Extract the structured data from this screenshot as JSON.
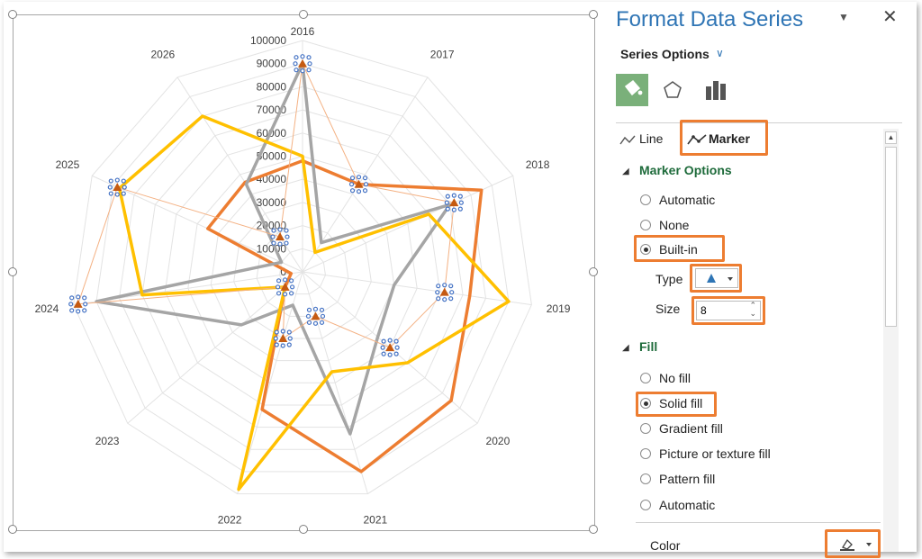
{
  "panel": {
    "title": "Format Data Series",
    "series_options_label": "Series Options",
    "tabs": [
      "Line",
      "Marker"
    ],
    "marker_options_heading": "Marker Options",
    "marker_options": [
      {
        "label": "Automatic",
        "checked": false
      },
      {
        "label": "None",
        "checked": false
      },
      {
        "label": "Built-in",
        "checked": true
      }
    ],
    "type_label": "Type",
    "size_label": "Size",
    "size_value": "8",
    "fill_heading": "Fill",
    "fill_options": [
      {
        "label": "No fill",
        "checked": false
      },
      {
        "label": "Solid fill",
        "checked": true
      },
      {
        "label": "Gradient fill",
        "checked": false
      },
      {
        "label": "Picture or texture fill",
        "checked": false
      },
      {
        "label": "Pattern fill",
        "checked": false
      },
      {
        "label": "Automatic",
        "checked": false
      }
    ],
    "color_label": "Color"
  },
  "colors": {
    "accent": "#2f75b5",
    "highlight": "#ed7d31",
    "section_green": "#1e6b3b",
    "series_orange": "#ed7d31",
    "series_gray": "#a5a5a5",
    "series_yellow": "#ffc000",
    "marker_blue": "#4472c4"
  },
  "chart_data": {
    "type": "radar",
    "categories": [
      "2016",
      "2017",
      "2018",
      "2019",
      "2020",
      "2021",
      "2022",
      "2023",
      "2024",
      "2025",
      "2026"
    ],
    "radial_ticks": [
      "100000",
      "90000",
      "80000",
      "70000",
      "60000",
      "50000",
      "40000",
      "30000",
      "20000",
      "10000",
      "0"
    ],
    "rmax": 100000,
    "series": [
      {
        "values": [
          48000,
          45000,
          85000,
          73000,
          85000,
          90000,
          62000,
          10000,
          5000,
          45000,
          46000
        ]
      },
      {
        "values": [
          90000,
          15000,
          70000,
          40000,
          43000,
          73000,
          15000,
          35000,
          90000,
          10000,
          45000
        ]
      },
      {
        "values": [
          50000,
          10000,
          60000,
          90000,
          60000,
          45000,
          98000,
          10000,
          70000,
          87000,
          80000
        ]
      },
      {
        "values": [
          90000,
          45000,
          72000,
          62000,
          50000,
          20000,
          30000,
          10000,
          98000,
          88000,
          18000
        ]
      }
    ]
  }
}
